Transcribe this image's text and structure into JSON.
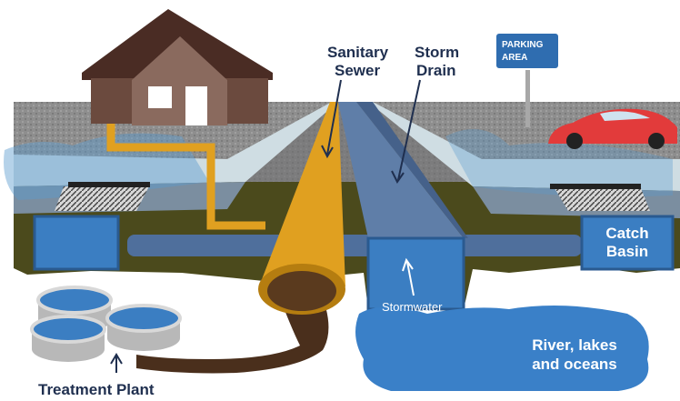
{
  "labels": {
    "parking_sign": [
      "PARKING",
      "AREA"
    ],
    "sanitary_sewer": [
      "Sanitary",
      "Sewer"
    ],
    "storm_drain": [
      "Storm",
      "Drain"
    ],
    "catch_basin": [
      "Catch",
      "Basin"
    ],
    "stormwater": "Stormwater",
    "river": [
      "River, lakes",
      "and oceans"
    ],
    "treatment_plant": "Treatment Plant"
  }
}
